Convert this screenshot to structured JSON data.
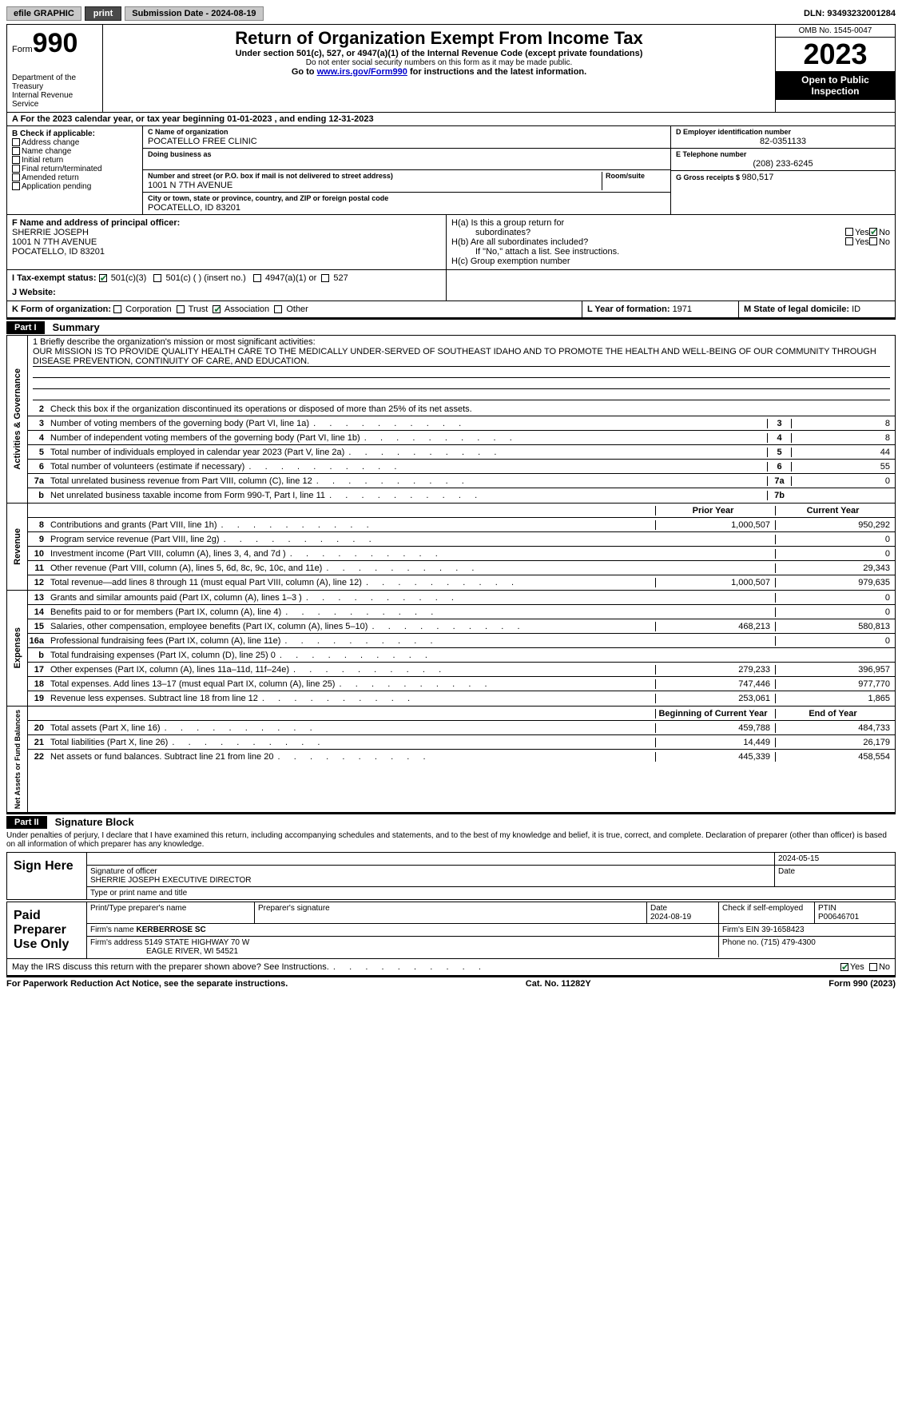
{
  "topbar": {
    "efile": "efile GRAPHIC",
    "print": "print",
    "sub_label": "Submission Date - ",
    "sub_date": "2024-08-19",
    "dln_label": "DLN: ",
    "dln": "93493232001284"
  },
  "header": {
    "form_word": "Form",
    "form_no": "990",
    "title": "Return of Organization Exempt From Income Tax",
    "subtitle": "Under section 501(c), 527, or 4947(a)(1) of the Internal Revenue Code (except private foundations)",
    "warn": "Do not enter social security numbers on this form as it may be made public.",
    "goto_pre": "Go to ",
    "goto_link": "www.irs.gov/Form990",
    "goto_post": " for instructions and the latest information.",
    "dept1": "Department of the Treasury",
    "dept2": "Internal Revenue Service",
    "omb": "OMB No. 1545-0047",
    "year": "2023",
    "open": "Open to Public Inspection"
  },
  "rowA": {
    "pre": "A For the 2023 calendar year, or tax year beginning ",
    "begin": "01-01-2023",
    "mid": "   , and ending ",
    "end": "12-31-2023"
  },
  "boxB": {
    "label": "B Check if applicable:",
    "items": [
      "Address change",
      "Name change",
      "Initial return",
      "Final return/terminated",
      "Amended return",
      "Application pending"
    ]
  },
  "boxC": {
    "name_lbl": "C Name of organization",
    "name": "POCATELLO FREE CLINIC",
    "dba_lbl": "Doing business as",
    "addr_lbl": "Number and street (or P.O. box if mail is not delivered to street address)",
    "room_lbl": "Room/suite",
    "addr": "1001 N 7TH AVENUE",
    "city_lbl": "City or town, state or province, country, and ZIP or foreign postal code",
    "city": "POCATELLO, ID  83201"
  },
  "boxD": {
    "lbl": "D Employer identification number",
    "val": "82-0351133"
  },
  "boxE": {
    "lbl": "E Telephone number",
    "val": "(208) 233-6245"
  },
  "boxG": {
    "lbl": "G Gross receipts $ ",
    "val": "980,517"
  },
  "boxF": {
    "lbl": "F  Name and address of principal officer:",
    "l1": "SHERRIE JOSEPH",
    "l2": "1001 N 7TH AVENUE",
    "l3": "POCATELLO, ID  83201"
  },
  "boxH": {
    "ha": "H(a)  Is this a group return for",
    "ha2": "subordinates?",
    "hb": "H(b)  Are all subordinates included?",
    "hb2": "If \"No,\" attach a list. See instructions.",
    "hc": "H(c)  Group exemption number ",
    "yes": "Yes",
    "no": "No"
  },
  "rowI": {
    "lbl": "I    Tax-exempt status:",
    "o1": "501(c)(3)",
    "o2": "501(c) (  ) (insert no.)",
    "o3": "4947(a)(1) or",
    "o4": "527"
  },
  "rowJ": {
    "lbl": "J    Website: "
  },
  "rowK": {
    "lbl": "K Form of organization:",
    "o1": "Corporation",
    "o2": "Trust",
    "o3": "Association",
    "o4": "Other"
  },
  "rowL": {
    "lbl": "L Year of formation: ",
    "val": "1971"
  },
  "rowM": {
    "lbl": "M State of legal domicile: ",
    "val": "ID"
  },
  "part1": {
    "hdr": "Part I",
    "title": "Summary"
  },
  "section_labels": {
    "ag": "Activities & Governance",
    "rev": "Revenue",
    "exp": "Expenses",
    "net": "Net Assets or Fund Balances"
  },
  "mission": {
    "lbl": "1   Briefly describe the organization's mission or most significant activities:",
    "text": "OUR MISSION IS TO PROVIDE QUALITY HEALTH CARE TO THE MEDICALLY UNDER-SERVED OF SOUTHEAST IDAHO AND TO PROMOTE THE HEALTH AND WELL-BEING OF OUR COMMUNITY THROUGH DISEASE PREVENTION, CONTINUITY OF CARE, AND EDUCATION."
  },
  "line2": "Check this box         if the organization discontinued its operations or disposed of more than 25% of its net assets.",
  "ag_lines": [
    {
      "n": "3",
      "d": "Number of voting members of the governing body (Part VI, line 1a)",
      "box": "3",
      "v": "8"
    },
    {
      "n": "4",
      "d": "Number of independent voting members of the governing body (Part VI, line 1b)",
      "box": "4",
      "v": "8"
    },
    {
      "n": "5",
      "d": "Total number of individuals employed in calendar year 2023 (Part V, line 2a)",
      "box": "5",
      "v": "44"
    },
    {
      "n": "6",
      "d": "Total number of volunteers (estimate if necessary)",
      "box": "6",
      "v": "55"
    },
    {
      "n": "7a",
      "d": "Total unrelated business revenue from Part VIII, column (C), line 12",
      "box": "7a",
      "v": "0"
    },
    {
      "n": "b",
      "d": "Net unrelated business taxable income from Form 990-T, Part I, line 11",
      "box": "7b",
      "v": ""
    }
  ],
  "py_hdr": "Prior Year",
  "cy_hdr": "Current Year",
  "rev_lines": [
    {
      "n": "8",
      "d": "Contributions and grants (Part VIII, line 1h)",
      "py": "1,000,507",
      "cy": "950,292"
    },
    {
      "n": "9",
      "d": "Program service revenue (Part VIII, line 2g)",
      "py": "",
      "cy": "0"
    },
    {
      "n": "10",
      "d": "Investment income (Part VIII, column (A), lines 3, 4, and 7d )",
      "py": "",
      "cy": "0"
    },
    {
      "n": "11",
      "d": "Other revenue (Part VIII, column (A), lines 5, 6d, 8c, 9c, 10c, and 11e)",
      "py": "",
      "cy": "29,343"
    },
    {
      "n": "12",
      "d": "Total revenue—add lines 8 through 11 (must equal Part VIII, column (A), line 12)",
      "py": "1,000,507",
      "cy": "979,635"
    }
  ],
  "exp_lines": [
    {
      "n": "13",
      "d": "Grants and similar amounts paid (Part IX, column (A), lines 1–3 )",
      "py": "",
      "cy": "0"
    },
    {
      "n": "14",
      "d": "Benefits paid to or for members (Part IX, column (A), line 4)",
      "py": "",
      "cy": "0"
    },
    {
      "n": "15",
      "d": "Salaries, other compensation, employee benefits (Part IX, column (A), lines 5–10)",
      "py": "468,213",
      "cy": "580,813"
    },
    {
      "n": "16a",
      "d": "Professional fundraising fees (Part IX, column (A), line 11e)",
      "py": "",
      "cy": "0"
    },
    {
      "n": "b",
      "d": "Total fundraising expenses (Part IX, column (D), line 25) 0",
      "py": "shade",
      "cy": "shade"
    },
    {
      "n": "17",
      "d": "Other expenses (Part IX, column (A), lines 11a–11d, 11f–24e)",
      "py": "279,233",
      "cy": "396,957"
    },
    {
      "n": "18",
      "d": "Total expenses. Add lines 13–17 (must equal Part IX, column (A), line 25)",
      "py": "747,446",
      "cy": "977,770"
    },
    {
      "n": "19",
      "d": "Revenue less expenses. Subtract line 18 from line 12",
      "py": "253,061",
      "cy": "1,865"
    }
  ],
  "net_hdr_py": "Beginning of Current Year",
  "net_hdr_cy": "End of Year",
  "net_lines": [
    {
      "n": "20",
      "d": "Total assets (Part X, line 16)",
      "py": "459,788",
      "cy": "484,733"
    },
    {
      "n": "21",
      "d": "Total liabilities (Part X, line 26)",
      "py": "14,449",
      "cy": "26,179"
    },
    {
      "n": "22",
      "d": "Net assets or fund balances. Subtract line 21 from line 20",
      "py": "445,339",
      "cy": "458,554"
    }
  ],
  "part2": {
    "hdr": "Part II",
    "title": "Signature Block"
  },
  "perjury": "Under penalties of perjury, I declare that I have examined this return, including accompanying schedules and statements, and to the best of my knowledge and belief, it is true, correct, and complete. Declaration of preparer (other than officer) is based on all information of which preparer has any knowledge.",
  "sign": {
    "here": "Sign Here",
    "sig_lbl": "Signature of officer",
    "name": "SHERRIE JOSEPH  EXECUTIVE DIRECTOR",
    "title_lbl": "Type or print name and title",
    "date_lbl": "Date",
    "date": "2024-05-15"
  },
  "paid": {
    "label": "Paid Preparer Use Only",
    "pname_lbl": "Print/Type preparer's name",
    "psig_lbl": "Preparer's signature",
    "pdate_lbl": "Date",
    "pdate": "2024-08-19",
    "check_lbl": "Check         if self-employed",
    "ptin_lbl": "PTIN",
    "ptin": "P00646701",
    "firm_lbl": "Firm's name   ",
    "firm": "KERBERROSE SC",
    "ein_lbl": "Firm's EIN  ",
    "ein": "39-1658423",
    "addr_lbl": "Firm's address ",
    "addr1": "5149 STATE HIGHWAY 70 W",
    "addr2": "EAGLE RIVER, WI  54521",
    "phone_lbl": "Phone no. ",
    "phone": "(715) 479-4300"
  },
  "discuss": "May the IRS discuss this return with the preparer shown above? See Instructions.",
  "discuss_yes": "Yes",
  "discuss_no": "No",
  "footer": {
    "l": "For Paperwork Reduction Act Notice, see the separate instructions.",
    "c": "Cat. No. 11282Y",
    "r": "Form 990 (2023)"
  }
}
